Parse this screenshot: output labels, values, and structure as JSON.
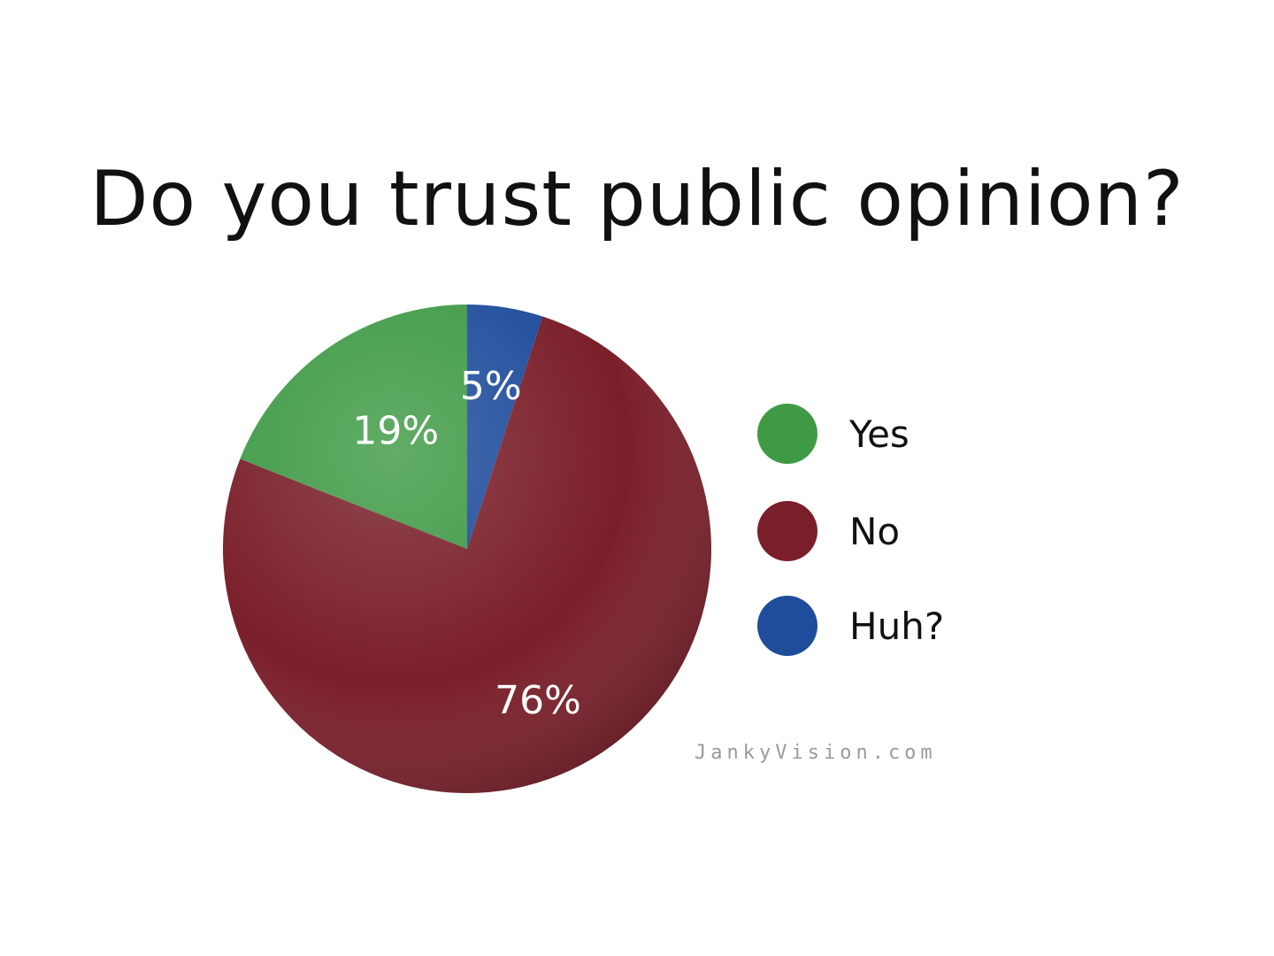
{
  "chart_data": {
    "type": "pie",
    "title": "Do you trust public opinion?",
    "slices": [
      {
        "label": "Yes",
        "value": 19,
        "value_label": "19%",
        "color": "#3f9a45"
      },
      {
        "label": "No",
        "value": 76,
        "value_label": "76%",
        "color": "#7a1f2a"
      },
      {
        "label": "Huh?",
        "value": 5,
        "value_label": "5%",
        "color": "#1f4d9c"
      }
    ],
    "legend_position": "right"
  },
  "watermark": "JankyVision.com"
}
